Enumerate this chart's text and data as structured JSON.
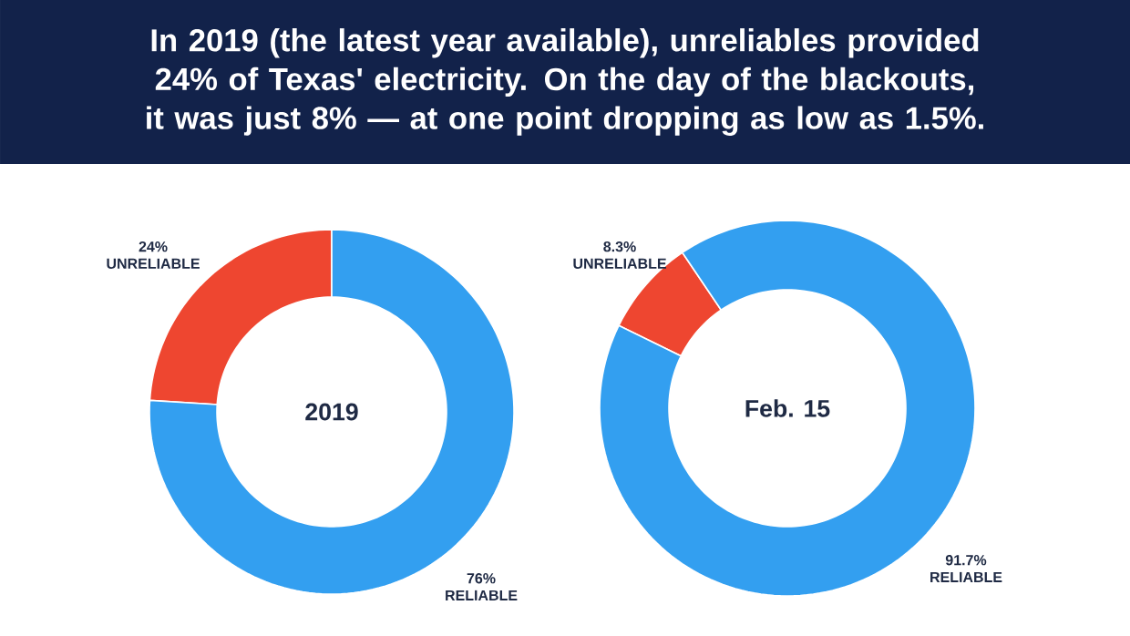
{
  "chart_data": [
    {
      "type": "donut",
      "title": "In 2019 (the latest year available), unreliables provided 24% of Texas' electricity. On the day of the blackouts, it was just 8% — at one point dropping as low as 1.5%.",
      "subtitle": "2019",
      "categories": [
        "UNRELIABLE",
        "RELIABLE"
      ],
      "values": [
        24,
        76
      ],
      "colors": [
        "#ee4630",
        "#339ff0"
      ],
      "value_labels": [
        "24%",
        "76%"
      ]
    },
    {
      "type": "donut",
      "subtitle": "Feb. 15",
      "categories": [
        "UNRELIABLE",
        "RELIABLE"
      ],
      "values": [
        8.3,
        91.7
      ],
      "colors": [
        "#ee4630",
        "#339ff0"
      ],
      "value_labels": [
        "8.3%",
        "91.7%"
      ]
    }
  ]
}
